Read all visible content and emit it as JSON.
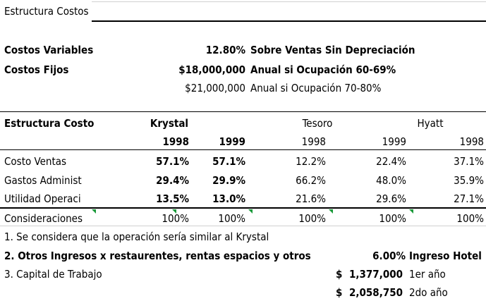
{
  "title": "Estructura Costos",
  "costos": [
    {
      "label": "Costos Variables",
      "value": "12.80%",
      "desc": "Sobre Ventas Sin Depreciación",
      "bold": true
    },
    {
      "label": "Costos Fijos",
      "value": "$18,000,000",
      "desc": "Anual si Ocupación 60-69%",
      "bold": true
    },
    {
      "label": "",
      "value": "$21,000,000",
      "desc": "Anual si Ocupación 70-80%",
      "bold": false
    }
  ],
  "table": {
    "header_label": "Estructura Costo",
    "groups": [
      "Krystal",
      "Tesoro",
      "Hyatt"
    ],
    "years": [
      "1998",
      "1999",
      "1998",
      "1999",
      "1998"
    ],
    "rows": [
      {
        "label": "Costo Ventas",
        "values": [
          "57.1%",
          "57.1%",
          "12.2%",
          "22.4%",
          "37.1%"
        ]
      },
      {
        "label": "Gastos Administ",
        "values": [
          "29.4%",
          "29.9%",
          "66.2%",
          "48.0%",
          "35.9%"
        ]
      },
      {
        "label": "Utilidad Operaci",
        "values": [
          "13.5%",
          "13.0%",
          "21.6%",
          "29.6%",
          "27.1%"
        ]
      }
    ],
    "total_row": {
      "label": "Consideraciones",
      "values": [
        "100%",
        "100%",
        "100%",
        "100%",
        "100%"
      ]
    }
  },
  "notes": {
    "n1": "1. Se considera que la operación sería similar al Krystal",
    "n2_text": "2. Otros Ingresos x restaurentes, rentas espacios y otros",
    "n2_value": "6.00%",
    "n2_desc": "Ingreso Hotel",
    "n3_text": "3. Capital de Trabajo",
    "currency_symbol": "$",
    "capital": [
      {
        "amount": "1,377,000",
        "desc": "1er año"
      },
      {
        "amount": "2,058,750",
        "desc": "2do año"
      }
    ]
  },
  "colors": {
    "comment_marker": "#1a9a3a"
  }
}
